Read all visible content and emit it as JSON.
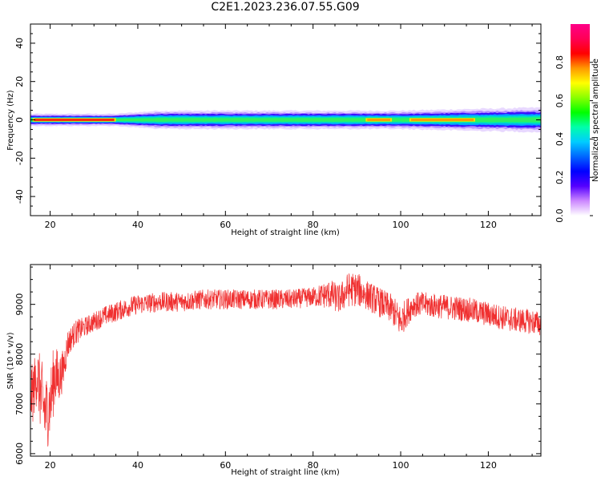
{
  "title": "C2E1.2023.236.07.55.G09",
  "chart_data": [
    {
      "type": "heatmap",
      "xlabel": "Height of straight line (km)",
      "ylabel": "Frequency (Hz)",
      "xlim": [
        15.5,
        132
      ],
      "ylim": [
        -50,
        50
      ],
      "xticks": [
        20,
        40,
        60,
        80,
        100,
        120
      ],
      "yticks": [
        -40,
        -20,
        0,
        20,
        40
      ],
      "ridge_center_hz": 0,
      "band_half_width_hz": [
        {
          "x": 16,
          "hz": 2.0
        },
        {
          "x": 35,
          "hz": 2.0
        },
        {
          "x": 45,
          "hz": 3.0
        },
        {
          "x": 60,
          "hz": 3.0
        },
        {
          "x": 100,
          "hz": 3.0
        },
        {
          "x": 115,
          "hz": 3.5
        },
        {
          "x": 132,
          "hz": 4.0
        }
      ],
      "high_amplitude_segments_km": [
        [
          16,
          35
        ],
        [
          92,
          98
        ],
        [
          102,
          117
        ]
      ],
      "grid": false
    },
    {
      "type": "line",
      "xlabel": "Height of straight line (km)",
      "ylabel": "SNR (10 * v/v)",
      "xlim": [
        15.5,
        132
      ],
      "ylim": [
        5950,
        9800
      ],
      "xticks": [
        20,
        40,
        60,
        80,
        100,
        120
      ],
      "yticks": [
        6000,
        7000,
        8000,
        9000
      ],
      "series": [
        {
          "color": "#f03030",
          "x": [
            16,
            17,
            18,
            19,
            20,
            21,
            22,
            23,
            24,
            25,
            26,
            28,
            30,
            32,
            35,
            38,
            40,
            45,
            50,
            55,
            60,
            65,
            70,
            75,
            80,
            84,
            86,
            88,
            90,
            92,
            95,
            98,
            100,
            101,
            103,
            105,
            110,
            115,
            120,
            125,
            130,
            132
          ],
          "y": [
            7200,
            7600,
            7100,
            6800,
            7000,
            7600,
            7500,
            7700,
            8200,
            8350,
            8450,
            8550,
            8650,
            8750,
            8850,
            8950,
            9000,
            9050,
            9050,
            9100,
            9100,
            9100,
            9100,
            9100,
            9150,
            9200,
            9100,
            9300,
            9300,
            9200,
            9050,
            8900,
            8650,
            8800,
            9000,
            9000,
            8950,
            8900,
            8800,
            8700,
            8650,
            8600
          ],
          "noise_amplitude": [
            600,
            600,
            800,
            800,
            700,
            700,
            500,
            400,
            300,
            250,
            250,
            200,
            200,
            200,
            200,
            200,
            200,
            200,
            200,
            200,
            200,
            200,
            200,
            200,
            200,
            300,
            300,
            350,
            350,
            300,
            300,
            300,
            350,
            300,
            250,
            250,
            250,
            250,
            250,
            250,
            250,
            250
          ]
        }
      ],
      "grid": false
    }
  ],
  "colorbar": {
    "label": "Normalized spectral amplitude",
    "range": [
      0,
      1
    ],
    "ticks": [
      0.0,
      0.2,
      0.4,
      0.6,
      0.8
    ],
    "tick_labels": [
      "0.0",
      "0.2",
      "0.4",
      "0.6",
      "0.8"
    ],
    "colors": [
      "#ffffff",
      "#cc88ff",
      "#5500ff",
      "#0000ff",
      "#0066ff",
      "#00ccff",
      "#00ffaa",
      "#00ff00",
      "#88ff00",
      "#ffff00",
      "#ff9900",
      "#ff0000",
      "#ff0055",
      "#ff0088"
    ]
  }
}
